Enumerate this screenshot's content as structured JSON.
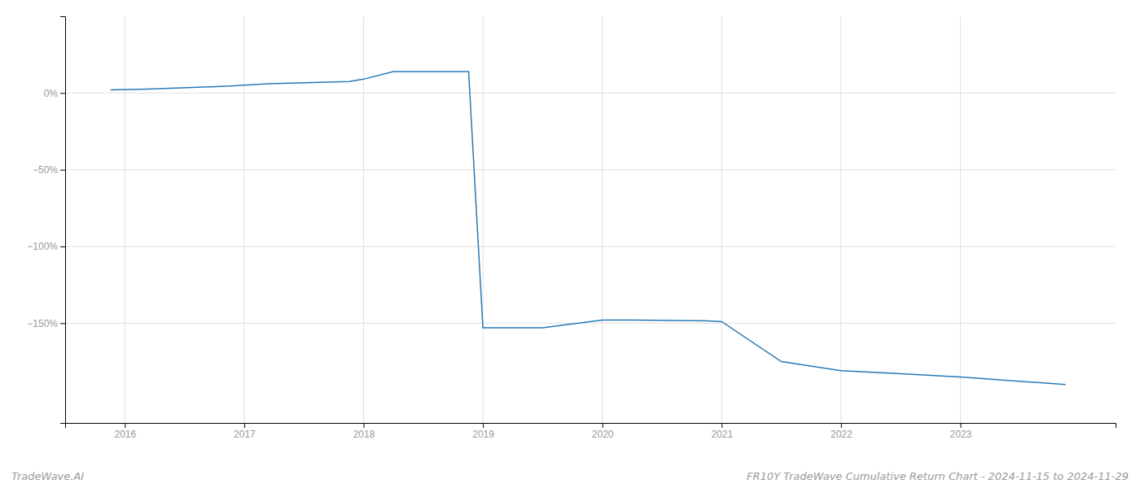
{
  "chart_data": {
    "type": "line",
    "title": "FR10Y TradeWave Cumulative Return Chart - 2024-11-15 to 2024-11-29",
    "annotations": [
      "TradeWave.AI"
    ],
    "x": [
      2015.88,
      2016.2,
      2016.88,
      2017.2,
      2017.88,
      2018.0,
      2018.25,
      2018.88,
      2019.0,
      2019.5,
      2020.0,
      2020.25,
      2020.88,
      2021.0,
      2021.5,
      2022.0,
      2022.5,
      2023.0,
      2023.88
    ],
    "values": [
      2.0,
      2.5,
      4.5,
      6.0,
      7.5,
      9.0,
      14.0,
      14.0,
      -153.0,
      -153.0,
      -148.0,
      -148.0,
      -148.5,
      -149.0,
      -175.0,
      -181.0,
      -183.0,
      -185.0,
      -190.0
    ],
    "color": "#2878b5",
    "xlim": [
      2015.5,
      2024.3
    ],
    "xticks": [
      2016,
      2017,
      2018,
      2019,
      2020,
      2021,
      2022,
      2023
    ],
    "ylim": [
      -215,
      50
    ],
    "yticks": [
      {
        "value": 0,
        "label": "0%"
      },
      {
        "value": -50,
        "label": "−50%"
      },
      {
        "value": -100,
        "label": "−100%"
      },
      {
        "value": -150,
        "label": "−150%"
      }
    ],
    "grid": true
  }
}
